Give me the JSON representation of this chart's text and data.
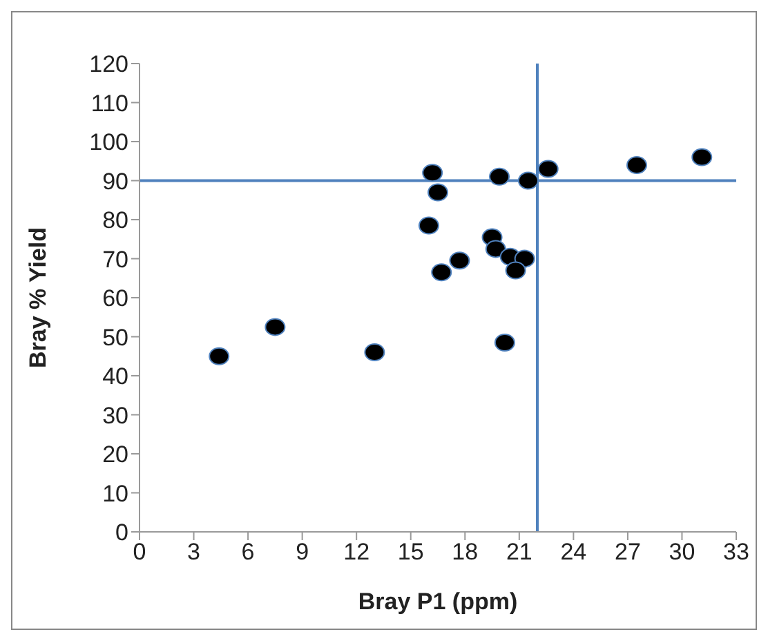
{
  "chart_data": {
    "type": "scatter",
    "xlabel": "Bray P1 (ppm)",
    "ylabel": "Bray % Yield",
    "xlim": [
      0,
      33
    ],
    "xticks": [
      0,
      3,
      6,
      9,
      12,
      15,
      18,
      21,
      24,
      27,
      30,
      33
    ],
    "ylim": [
      0,
      120
    ],
    "yticks": [
      0,
      10,
      20,
      30,
      40,
      50,
      60,
      70,
      80,
      90,
      100,
      110,
      120
    ],
    "grid": false,
    "legend": false,
    "marker": "circle",
    "ref_lines": [
      {
        "axis": "y",
        "value": 90,
        "color": "#4f81bd"
      },
      {
        "axis": "x",
        "value": 22,
        "color": "#4f81bd"
      }
    ],
    "series": [
      {
        "color": "#000000",
        "x": [
          4.4,
          7.5,
          13,
          16.2,
          16.5,
          16,
          16.7,
          17.7,
          19.9,
          21.5,
          22.6,
          27.5,
          31.1,
          19.5,
          19.7,
          20.5,
          21,
          21.3,
          20.8,
          20.2
        ],
        "values": [
          45,
          52.5,
          46,
          92,
          87,
          78.5,
          66.5,
          69.5,
          91,
          90,
          93,
          94,
          96,
          75.5,
          72.5,
          70.5,
          null,
          70,
          67,
          48.5
        ]
      }
    ]
  }
}
